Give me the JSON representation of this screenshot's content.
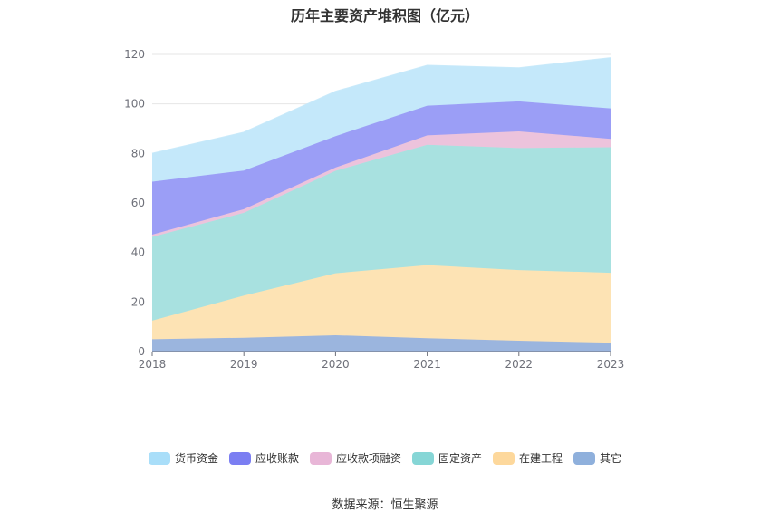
{
  "chart_data": {
    "type": "area",
    "stacked": true,
    "title": "历年主要资产堆积图（亿元）",
    "xlabel": "",
    "ylabel": "",
    "x": [
      "2018",
      "2019",
      "2020",
      "2021",
      "2022",
      "2023"
    ],
    "ylim": [
      0,
      120
    ],
    "yticks": [
      0,
      20,
      40,
      60,
      80,
      100,
      120
    ],
    "grid": true,
    "legend_position": "bottom",
    "series": [
      {
        "name": "其它",
        "color": "#9bb5de",
        "values": [
          5,
          5.6,
          6.6,
          5.4,
          4.4,
          3.6
        ]
      },
      {
        "name": "在建工程",
        "color": "#fde3b4",
        "values": [
          7.5,
          17,
          25,
          29.5,
          28.5,
          28.2
        ]
      },
      {
        "name": "固定资产",
        "color": "#a8e1e0",
        "values": [
          33.8,
          33.4,
          41.4,
          48.6,
          49.3,
          50.7
        ]
      },
      {
        "name": "应收款项融资",
        "color": "#ecc3dc",
        "values": [
          0.9,
          1.5,
          1.3,
          3.8,
          6.7,
          3.4
        ]
      },
      {
        "name": "应收账款",
        "color": "#9b9ef6",
        "values": [
          21.4,
          15.6,
          12.7,
          12.0,
          12.1,
          12.3
        ]
      },
      {
        "name": "货币资金",
        "color": "#c4e8fa",
        "values": [
          11.4,
          15.4,
          18.0,
          16.2,
          13.5,
          20.4
        ]
      }
    ]
  },
  "legend": {
    "items": [
      {
        "label": "货币资金",
        "color": "#a9def9"
      },
      {
        "label": "应收账款",
        "color": "#7b7ef2"
      },
      {
        "label": "应收款项融资",
        "color": "#e8b6d7"
      },
      {
        "label": "固定资产",
        "color": "#86d6d6"
      },
      {
        "label": "在建工程",
        "color": "#fdd89c"
      },
      {
        "label": "其它",
        "color": "#8fb0dc"
      }
    ]
  },
  "source": "数据来源：恒生聚源"
}
